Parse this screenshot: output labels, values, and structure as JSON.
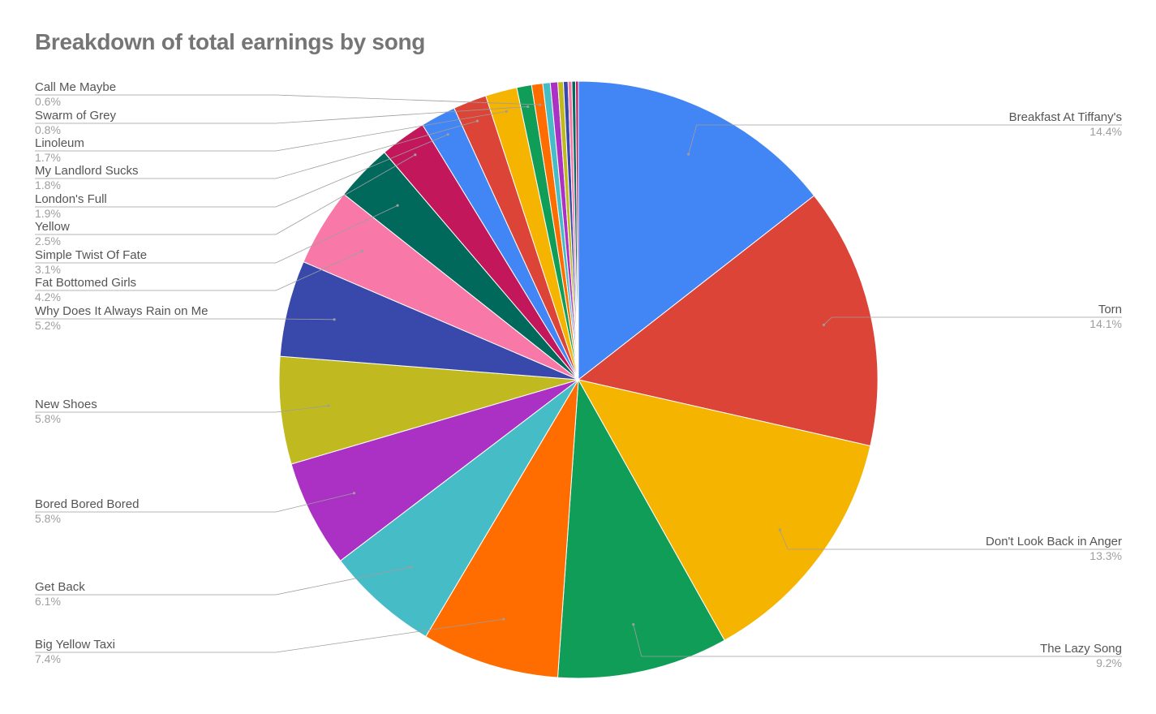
{
  "chart_data": {
    "type": "pie",
    "title": "Breakdown of total earnings by song",
    "slices": [
      {
        "label": "Breakfast At Tiffany's",
        "percent_label": "14.4%",
        "value": 14.4,
        "color": "#4285F4"
      },
      {
        "label": "Torn",
        "percent_label": "14.1%",
        "value": 14.1,
        "color": "#DB4437"
      },
      {
        "label": "Don't Look Back in Anger",
        "percent_label": "13.3%",
        "value": 13.3,
        "color": "#F4B400"
      },
      {
        "label": "The Lazy Song",
        "percent_label": "9.2%",
        "value": 9.2,
        "color": "#0F9D58"
      },
      {
        "label": "Big Yellow Taxi",
        "percent_label": "7.4%",
        "value": 7.4,
        "color": "#FF6D00"
      },
      {
        "label": "Get Back",
        "percent_label": "6.1%",
        "value": 6.1,
        "color": "#46BDC6"
      },
      {
        "label": "Bored Bored Bored",
        "percent_label": "5.8%",
        "value": 5.8,
        "color": "#AB30C4"
      },
      {
        "label": "New Shoes",
        "percent_label": "5.8%",
        "value": 5.8,
        "color": "#C0BA20"
      },
      {
        "label": "Why Does It Always Rain on Me",
        "percent_label": "5.2%",
        "value": 5.2,
        "color": "#3949AB"
      },
      {
        "label": "Fat Bottomed Girls",
        "percent_label": "4.2%",
        "value": 4.2,
        "color": "#F878A8"
      },
      {
        "label": "Simple Twist Of Fate",
        "percent_label": "3.1%",
        "value": 3.1,
        "color": "#00695C"
      },
      {
        "label": "Yellow",
        "percent_label": "2.5%",
        "value": 2.5,
        "color": "#C2185B"
      },
      {
        "label": "London's Full",
        "percent_label": "1.9%",
        "value": 1.9,
        "color": "#4285F4"
      },
      {
        "label": "My Landlord Sucks",
        "percent_label": "1.8%",
        "value": 1.8,
        "color": "#DB4437"
      },
      {
        "label": "Linoleum",
        "percent_label": "1.7%",
        "value": 1.7,
        "color": "#F4B400"
      },
      {
        "label": "Swarm of Grey",
        "percent_label": "0.8%",
        "value": 0.8,
        "color": "#0F9D58"
      },
      {
        "label": "Call Me Maybe",
        "percent_label": "0.6%",
        "value": 0.6,
        "color": "#FF6D00"
      },
      {
        "label": "",
        "value": 0.4,
        "color": "#46BDC6"
      },
      {
        "label": "",
        "value": 0.4,
        "color": "#AB30C4"
      },
      {
        "label": "",
        "value": 0.3,
        "color": "#C0BA20"
      },
      {
        "label": "",
        "value": 0.25,
        "color": "#3949AB"
      },
      {
        "label": "",
        "value": 0.2,
        "color": "#F878A8"
      },
      {
        "label": "",
        "value": 0.2,
        "color": "#00695C"
      },
      {
        "label": "",
        "value": 0.15,
        "color": "#C2185B"
      }
    ],
    "legend": "none",
    "label_placement": "outside-with-leader-lines"
  }
}
